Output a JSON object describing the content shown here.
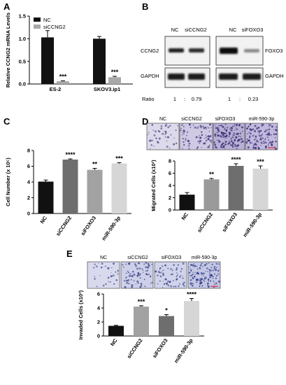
{
  "figure": {
    "panel_letters": [
      "A",
      "B",
      "C",
      "D",
      "E"
    ]
  },
  "chart_data": [
    {
      "panel": "A",
      "type": "bar",
      "ylabel": "Relative CCNG2 mRNA Levels",
      "ylim": [
        0,
        1.5
      ],
      "yticks": [
        "0.0",
        "0.5",
        "1.0",
        "1.5"
      ],
      "categories": [
        "ES-2",
        "SKOV3.ip1"
      ],
      "series": [
        {
          "name": "NC",
          "values": [
            1.03,
            1.0
          ],
          "errors": [
            0.15,
            0.05
          ],
          "color": "#111111"
        },
        {
          "name": "siCCNG2",
          "values": [
            0.06,
            0.15
          ],
          "errors": [
            0.01,
            0.02
          ],
          "color": "#a9a9a9"
        }
      ],
      "annotations": [
        "***",
        "***"
      ],
      "legend": "top-left"
    },
    {
      "panel": "C",
      "type": "bar",
      "ylabel": "Cell Number (x 10⁵)",
      "ylim": [
        0,
        8
      ],
      "yticks": [
        "0",
        "2",
        "4",
        "6",
        "8"
      ],
      "categories": [
        "NC",
        "siCCNG2",
        "siFOXO3",
        "miR-590-3p"
      ],
      "values": [
        4.05,
        6.85,
        5.55,
        6.35
      ],
      "errors": [
        0.2,
        0.08,
        0.18,
        0.1
      ],
      "colors": [
        "#111111",
        "#6e6e6e",
        "#a2a2a2",
        "#d6d6d6"
      ],
      "annotations": [
        "",
        "****",
        "**",
        "***"
      ]
    },
    {
      "panel": "D",
      "type": "bar",
      "ylabel": "Migrated Cells (x10²)",
      "ylim": [
        0,
        8
      ],
      "yticks": [
        "0",
        "2",
        "4",
        "6",
        "8"
      ],
      "categories": [
        "NC",
        "siCCNG2",
        "siFOXO3",
        "miR-590-3p"
      ],
      "values": [
        2.5,
        5.0,
        7.2,
        6.75
      ],
      "errors": [
        0.35,
        0.15,
        0.35,
        0.45
      ],
      "colors": [
        "#111111",
        "#9a9a9a",
        "#6e6e6e",
        "#d6d6d6"
      ],
      "annotations": [
        "",
        "**",
        "****",
        "***"
      ]
    },
    {
      "panel": "E",
      "type": "bar",
      "ylabel": "Invaded Cells (x10²)",
      "ylim": [
        0,
        6
      ],
      "yticks": [
        "0",
        "2",
        "4",
        "6"
      ],
      "categories": [
        "NC",
        "siCCNG2",
        "siFOXO3",
        "miR-590-3p"
      ],
      "values": [
        1.45,
        4.2,
        2.85,
        5.0
      ],
      "errors": [
        0.07,
        0.12,
        0.2,
        0.35
      ],
      "colors": [
        "#111111",
        "#a2a2a2",
        "#6e6e6e",
        "#d6d6d6"
      ],
      "annotations": [
        "",
        "***",
        "*",
        "****"
      ]
    }
  ],
  "blot_b": {
    "left_lanes": [
      "NC",
      "siCCNG2"
    ],
    "right_lanes": [
      "NC",
      "siFOXO3"
    ],
    "left_target": "CCNG2",
    "right_target": "FOXO3",
    "loading": "GAPDH",
    "ratio_label": "Ratio",
    "left_ratio": [
      "1",
      ":",
      "0.79"
    ],
    "right_ratio": [
      "1",
      ":",
      "0.23"
    ]
  },
  "micrographs_d": {
    "labels": [
      "NC",
      "siCCNG2",
      "siFOXO3",
      "miR-590-3p"
    ]
  },
  "micrographs_e": {
    "labels": [
      "NC",
      "siCCNG2",
      "siFOXO3",
      "miR-590-3p"
    ]
  }
}
